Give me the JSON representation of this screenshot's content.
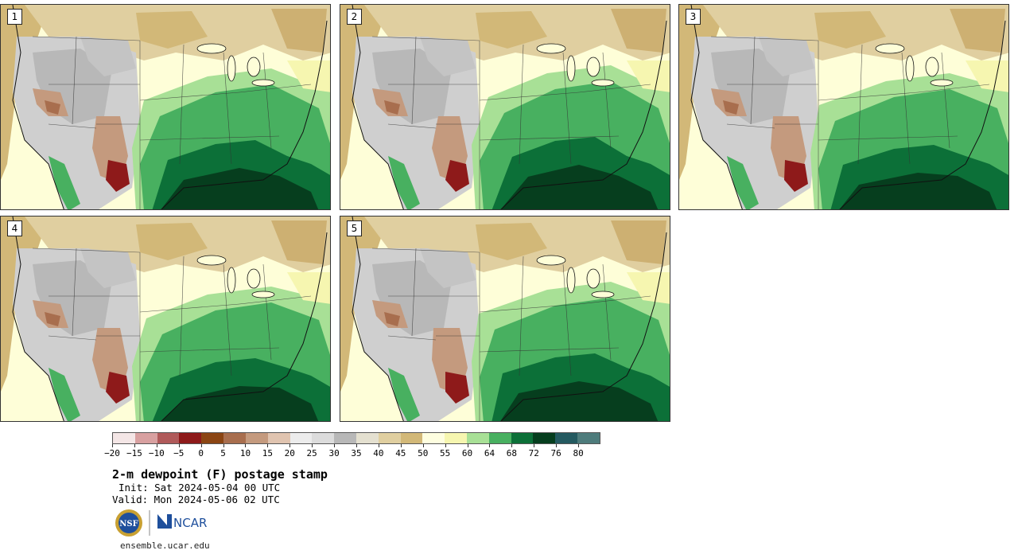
{
  "panels": [
    {
      "label": "1"
    },
    {
      "label": "2"
    },
    {
      "label": "3"
    },
    {
      "label": "4"
    },
    {
      "label": "5"
    }
  ],
  "colorbar": {
    "colors": [
      "#f4e6e6",
      "#d8a0a0",
      "#b05a5a",
      "#8e1a1a",
      "#8b4513",
      "#a86e4e",
      "#c49a7e",
      "#e0c4b0",
      "#ececec",
      "#dcdcdc",
      "#b8b8b8",
      "#e4e0d0",
      "#e0cfa0",
      "#d2b878",
      "#fefee0",
      "#f6f6b0",
      "#a8e096",
      "#48b060",
      "#0c7038",
      "#063e1e",
      "#245a60",
      "#4e7c7c"
    ],
    "ticks": [
      "−20",
      "−15",
      "−10",
      "−5",
      "0",
      "5",
      "10",
      "15",
      "20",
      "25",
      "30",
      "35",
      "40",
      "45",
      "50",
      "55",
      "60",
      "64",
      "68",
      "72",
      "76",
      "80"
    ]
  },
  "title": "2-m dewpoint (F) postage stamp",
  "init": "Init: Sat 2024-05-04 00 UTC",
  "valid": "Valid: Mon 2024-05-06 02 UTC",
  "logos": {
    "nsf": "NSF",
    "ncar": "NCAR"
  },
  "site": "ensemble.ucar.edu"
}
